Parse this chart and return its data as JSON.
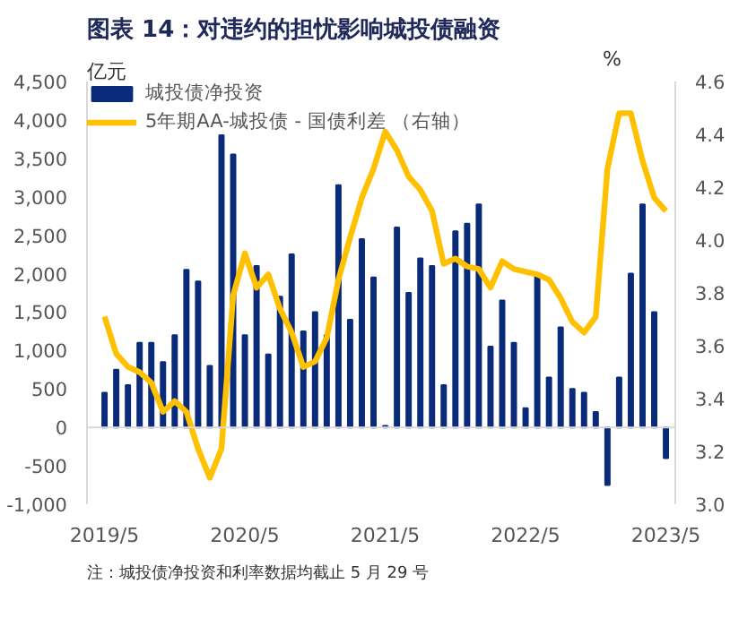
{
  "chart_data": {
    "type": "bar",
    "title": "图表 14：对违约的担忧影响城投债融资",
    "categories": [
      "2019/5",
      null,
      null,
      null,
      null,
      null,
      null,
      null,
      null,
      null,
      null,
      null,
      "2020/5",
      null,
      null,
      null,
      null,
      null,
      null,
      null,
      null,
      null,
      null,
      null,
      "2021/5",
      null,
      null,
      null,
      null,
      null,
      null,
      null,
      null,
      null,
      null,
      null,
      "2022/5",
      null,
      null,
      null,
      null,
      null,
      null,
      null,
      null,
      null,
      null,
      null,
      "2023/5"
    ],
    "series": [
      {
        "name": "城投债净投资",
        "color": "#0a2a7a",
        "values": [
          450,
          750,
          550,
          1100,
          1100,
          850,
          1200,
          2050,
          1900,
          800,
          3800,
          3550,
          1200,
          2100,
          950,
          1700,
          2250,
          1250,
          1500,
          1200,
          3150,
          1400,
          2450,
          1950,
          20,
          2600,
          1750,
          2200,
          2100,
          550,
          2550,
          2650,
          2900,
          1050,
          1650,
          1100,
          250,
          2000,
          650,
          1300,
          500,
          450,
          200,
          -750,
          650,
          2000,
          2900,
          1500,
          -400
        ]
      },
      {
        "name": "5年期AA-城投债 - 国债利差 （右轴）",
        "type": "line",
        "axis": "y2",
        "color": "#ffc000",
        "values": [
          3.71,
          3.57,
          3.52,
          3.5,
          3.46,
          3.35,
          3.39,
          3.35,
          3.21,
          3.1,
          3.21,
          3.79,
          3.95,
          3.82,
          3.87,
          3.74,
          3.65,
          3.52,
          3.54,
          3.63,
          3.85,
          4.01,
          4.16,
          4.27,
          4.41,
          4.34,
          4.24,
          4.19,
          4.11,
          3.91,
          3.93,
          3.9,
          3.89,
          3.82,
          3.92,
          3.89,
          3.88,
          3.87,
          3.85,
          3.78,
          3.69,
          3.65,
          3.71,
          4.27,
          4.48,
          4.48,
          4.3,
          4.16,
          4.11
        ]
      }
    ],
    "ylabel": "亿元",
    "y2label": "%",
    "ylim": [
      -1000,
      4500
    ],
    "yticks": [
      {
        "value": -1000,
        "label": "-1,000"
      },
      {
        "value": -500,
        "label": "-500"
      },
      {
        "value": 0,
        "label": "0"
      },
      {
        "value": 500,
        "label": "500"
      },
      {
        "value": 1000,
        "label": "1,000"
      },
      {
        "value": 1500,
        "label": "1,500"
      },
      {
        "value": 2000,
        "label": "2,000"
      },
      {
        "value": 2500,
        "label": "2,500"
      },
      {
        "value": 3000,
        "label": "3,000"
      },
      {
        "value": 3500,
        "label": "3,500"
      },
      {
        "value": 4000,
        "label": "4,000"
      },
      {
        "value": 4500,
        "label": "4,500"
      }
    ],
    "y2lim": [
      3.0,
      4.6
    ],
    "y2ticks": [
      {
        "value": 3.0,
        "label": "3.0"
      },
      {
        "value": 3.2,
        "label": "3.2"
      },
      {
        "value": 3.4,
        "label": "3.4"
      },
      {
        "value": 3.6,
        "label": "3.6"
      },
      {
        "value": 3.8,
        "label": "3.8"
      },
      {
        "value": 4.0,
        "label": "4.0"
      },
      {
        "value": 4.2,
        "label": "4.2"
      },
      {
        "value": 4.4,
        "label": "4.4"
      },
      {
        "value": 4.6,
        "label": "4.6"
      }
    ],
    "grid": false,
    "legend": "top left",
    "ref_lines": [
      {
        "axis": "y",
        "value": 0,
        "color": "#d9d9d9"
      }
    ],
    "annotations": [
      "注：城投债净投资和利率数据均截止 5 月 29 号"
    ]
  }
}
